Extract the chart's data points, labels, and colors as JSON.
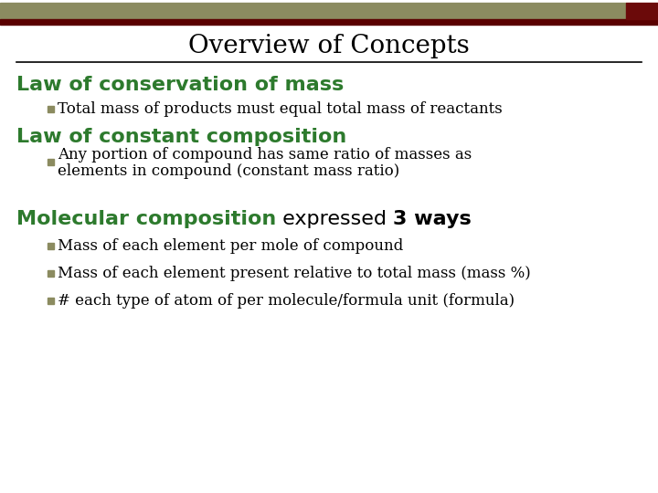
{
  "title": "Overview of Concepts",
  "title_color": "#000000",
  "title_fontsize": 20,
  "title_font": "serif",
  "bg_color": "#ffffff",
  "header_bar_color1": "#8b8b60",
  "header_bar_color2": "#6b0a0a",
  "header_bar2_color": "#5a0000",
  "heading1": "Law of conservation of mass",
  "heading2": "Law of constant composition",
  "heading3_part1": "Molecular composition",
  "heading3_part2": " expressed ",
  "heading3_part3": "3 ways",
  "heading_color": "#2d7a2d",
  "heading_fontsize": 16,
  "bullet_color": "#8b8b60",
  "bullet_text_color": "#000000",
  "bullet_fontsize": 12,
  "bullet1": "Total mass of products must equal total mass of reactants",
  "bullet2a": "Any portion of compound has same ratio of masses as",
  "bullet2b": "elements in compound (constant mass ratio)",
  "bullet3a": "Mass of each element per mole of compound",
  "bullet3b": "Mass of each element present relative to total mass (mass %)",
  "bullet3c": "# each type of atom of per molecule/formula unit (formula)"
}
